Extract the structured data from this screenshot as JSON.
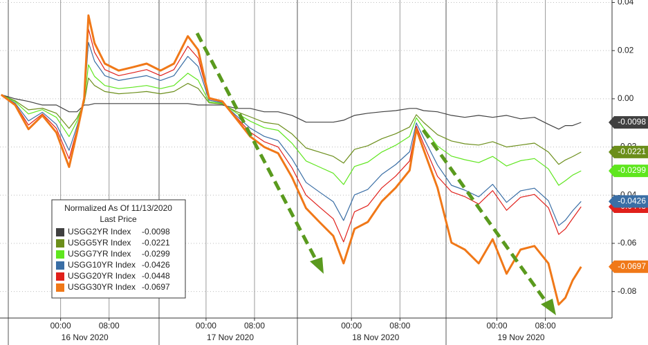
{
  "chart_data": {
    "type": "line",
    "legend_title": "Normalized As Of 11/13/2020",
    "legend_subtitle": "Last Price",
    "x": [
      -9.8,
      -7.5,
      -5.3,
      -3.0,
      -0.7,
      1.4,
      2.7,
      3.9,
      4.6,
      5.6,
      7.3,
      9.6,
      11.9,
      14.2,
      16.5,
      18.7,
      21.0,
      22.7,
      24.5,
      26.7,
      29.0,
      31.3,
      33.6,
      35.9,
      38.2,
      40.5,
      42.7,
      45.0,
      46.7,
      48.5,
      50.7,
      53.0,
      55.3,
      57.6,
      58.7,
      59.9,
      62.2,
      64.5,
      66.7,
      69.0,
      71.3,
      73.6,
      75.9,
      78.2,
      80.5,
      82.2,
      83.3,
      84.5,
      85.9
    ],
    "xlim": [
      -10,
      91
    ],
    "xticks": [
      {
        "value": 0,
        "label": "00:00"
      },
      {
        "value": 8,
        "label": "08:00"
      },
      {
        "value": 24,
        "label": "00:00"
      },
      {
        "value": 32,
        "label": "08:00"
      },
      {
        "value": 48,
        "label": "00:00"
      },
      {
        "value": 56,
        "label": "08:00"
      },
      {
        "value": 72,
        "label": "00:00"
      },
      {
        "value": 80,
        "label": "08:00"
      }
    ],
    "xdates": [
      {
        "value": 4,
        "label": "16 Nov 2020"
      },
      {
        "value": 28,
        "label": "17 Nov 2020"
      },
      {
        "value": 52,
        "label": "18 Nov 2020"
      },
      {
        "value": 76,
        "label": "19 Nov 2020"
      }
    ],
    "ylim": [
      -0.091,
      0.041
    ],
    "yticks": [
      0.04,
      0.02,
      {
        "value": 0,
        "label": "0.00"
      },
      -0.02,
      -0.04,
      -0.06,
      -0.08
    ],
    "grid": true,
    "series": [
      {
        "name": "USGG2YR Index",
        "last": -0.0098,
        "color": "#404040",
        "values": [
          0.0017,
          0,
          -0.0011,
          -0.0026,
          -0.0026,
          -0.0054,
          -0.0054,
          -0.0026,
          -0.0026,
          -0.002,
          -0.002,
          -0.002,
          -0.002,
          -0.002,
          -0.002,
          -0.002,
          -0.002,
          -0.0026,
          -0.0026,
          -0.0026,
          -0.004,
          -0.004,
          -0.0054,
          -0.0054,
          -0.0069,
          -0.0097,
          -0.0097,
          -0.0097,
          -0.0089,
          -0.0069,
          -0.006,
          -0.0054,
          -0.0049,
          -0.004,
          -0.004,
          -0.0049,
          -0.0054,
          -0.0069,
          -0.0077,
          -0.0069,
          -0.0077,
          -0.0069,
          -0.0083,
          -0.0077,
          -0.0106,
          -0.0126,
          -0.0111,
          -0.0111,
          -0.0098
        ]
      },
      {
        "name": "USGG5YR Index",
        "last": -0.0221,
        "color": "#6b8e1a",
        "values": [
          0.0017,
          -0.0008,
          -0.0046,
          -0.0039,
          -0.006,
          -0.0123,
          -0.008,
          -0.0017,
          0.0086,
          0.0055,
          0.003,
          0.0021,
          0.0025,
          0.003,
          0.0021,
          0.003,
          0.0064,
          0.0043,
          -0.0017,
          -0.0022,
          -0.0053,
          -0.0075,
          -0.0098,
          -0.0106,
          -0.0146,
          -0.0204,
          -0.0221,
          -0.0239,
          -0.0267,
          -0.021,
          -0.0195,
          -0.0166,
          -0.0145,
          -0.0117,
          -0.0066,
          -0.0098,
          -0.0149,
          -0.0175,
          -0.0187,
          -0.0192,
          -0.0178,
          -0.02,
          -0.0192,
          -0.0184,
          -0.0221,
          -0.0272,
          -0.0254,
          -0.024,
          -0.0221
        ]
      },
      {
        "name": "USGG7YR Index",
        "last": -0.0299,
        "color": "#5fe61e",
        "values": [
          0.0017,
          -0.0012,
          -0.0063,
          -0.0045,
          -0.0077,
          -0.0157,
          -0.0093,
          -0.0013,
          0.0141,
          0.0093,
          0.0055,
          0.0042,
          0.0048,
          0.0055,
          0.0042,
          0.0055,
          0.0106,
          0.0077,
          -0.0013,
          -0.0019,
          -0.0059,
          -0.0093,
          -0.012,
          -0.0131,
          -0.0185,
          -0.0258,
          -0.0283,
          -0.0309,
          -0.0356,
          -0.0281,
          -0.0263,
          -0.0221,
          -0.0193,
          -0.0156,
          -0.0079,
          -0.0122,
          -0.0196,
          -0.0238,
          -0.0253,
          -0.0265,
          -0.0239,
          -0.0279,
          -0.0257,
          -0.0248,
          -0.0291,
          -0.0359,
          -0.034,
          -0.0317,
          -0.0299
        ]
      },
      {
        "name": "USGG10YR Index",
        "last": -0.0426,
        "color": "#3a6ea5",
        "values": [
          0.0017,
          -0.0018,
          -0.0092,
          -0.0056,
          -0.0106,
          -0.0214,
          -0.0114,
          -0.0006,
          0.0234,
          0.0156,
          0.0096,
          0.0076,
          0.0086,
          0.0096,
          0.0076,
          0.0096,
          0.0176,
          0.0134,
          -0.0006,
          -0.0016,
          -0.007,
          -0.0122,
          -0.0156,
          -0.0174,
          -0.0249,
          -0.0347,
          -0.0387,
          -0.0427,
          -0.0505,
          -0.0399,
          -0.0376,
          -0.0314,
          -0.0273,
          -0.022,
          -0.01,
          -0.0162,
          -0.0275,
          -0.0359,
          -0.0379,
          -0.0407,
          -0.0355,
          -0.043,
          -0.0382,
          -0.0371,
          -0.0423,
          -0.0526,
          -0.0504,
          -0.0465,
          -0.0426
        ]
      },
      {
        "name": "USGG20YR Index",
        "last": -0.0448,
        "color": "#e0201b",
        "values": [
          0.0017,
          -0.0022,
          -0.0109,
          -0.0063,
          -0.0123,
          -0.0249,
          -0.0127,
          -0.0001,
          0.029,
          0.0193,
          0.0121,
          0.0096,
          0.0108,
          0.0121,
          0.0096,
          0.0121,
          0.0218,
          0.0169,
          -0.0001,
          -0.0013,
          -0.0077,
          -0.0139,
          -0.0178,
          -0.02,
          -0.0287,
          -0.04,
          -0.0449,
          -0.0498,
          -0.0594,
          -0.0469,
          -0.0443,
          -0.037,
          -0.0321,
          -0.0258,
          -0.0113,
          -0.0187,
          -0.0322,
          -0.0386,
          -0.0406,
          -0.0437,
          -0.0381,
          -0.0463,
          -0.0409,
          -0.0397,
          -0.0452,
          -0.0563,
          -0.054,
          -0.0497,
          -0.0448
        ]
      },
      {
        "name": "USGG30YR Index",
        "last": -0.0697,
        "color": "#f07818",
        "values": [
          0.0017,
          -0.0026,
          -0.0126,
          -0.0069,
          -0.014,
          -0.0283,
          -0.014,
          0.0003,
          0.0346,
          0.0231,
          0.0146,
          0.0117,
          0.0131,
          0.0146,
          0.0117,
          0.0146,
          0.026,
          0.0203,
          0.0003,
          -0.0011,
          -0.0083,
          -0.0157,
          -0.02,
          -0.0226,
          -0.0326,
          -0.0454,
          -0.0511,
          -0.0569,
          -0.0683,
          -0.054,
          -0.0511,
          -0.0426,
          -0.0369,
          -0.0297,
          -0.0126,
          -0.0211,
          -0.0369,
          -0.0597,
          -0.0626,
          -0.0683,
          -0.0583,
          -0.0726,
          -0.0626,
          -0.0611,
          -0.0683,
          -0.0854,
          -0.0826,
          -0.0754,
          -0.0697
        ]
      }
    ]
  }
}
